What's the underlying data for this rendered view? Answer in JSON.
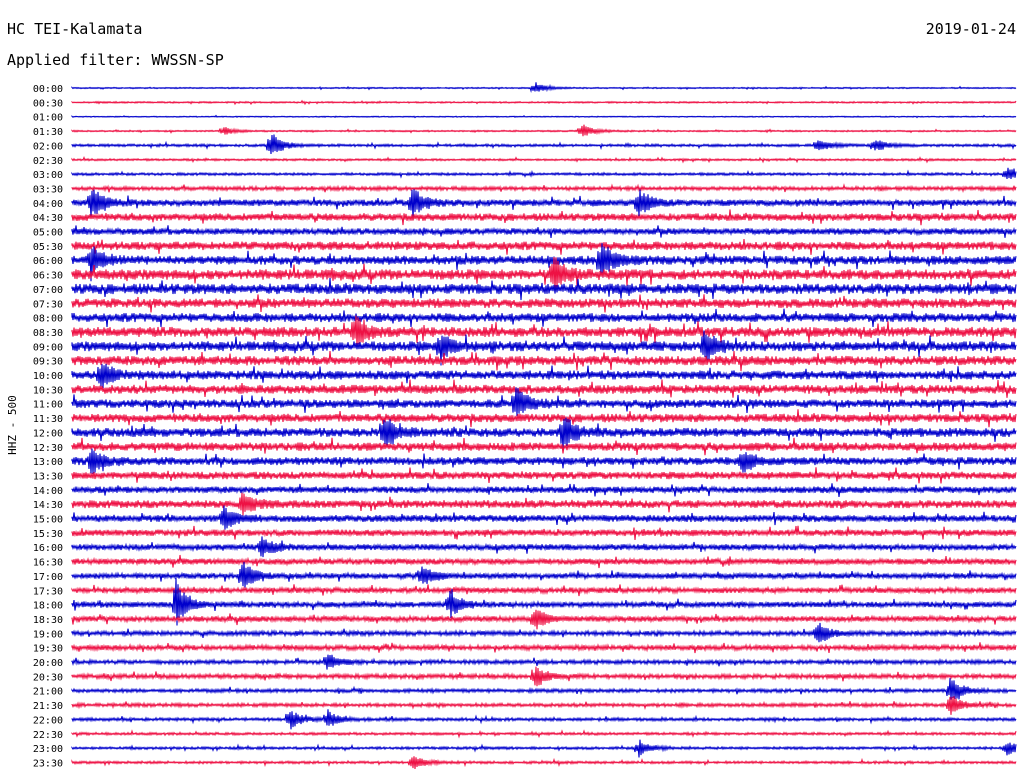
{
  "header": {
    "station": "HC TEI-Kalamata",
    "date": "2019-01-24",
    "filter_label": "Applied filter: WWSSN-SP"
  },
  "chart_data": {
    "type": "line",
    "title": "HC TEI-Kalamata",
    "ylabel": "HHZ - 500",
    "xlabel": "",
    "rows": [
      "00:00",
      "00:30",
      "01:00",
      "01:30",
      "02:00",
      "02:30",
      "03:00",
      "03:30",
      "04:00",
      "04:30",
      "05:00",
      "05:30",
      "06:00",
      "06:30",
      "07:00",
      "07:30",
      "08:00",
      "08:30",
      "09:00",
      "09:30",
      "10:00",
      "10:30",
      "11:00",
      "11:30",
      "12:00",
      "12:30",
      "13:00",
      "13:30",
      "14:00",
      "14:30",
      "15:00",
      "15:30",
      "16:00",
      "16:30",
      "17:00",
      "17:30",
      "18:00",
      "18:30",
      "19:00",
      "19:30",
      "20:00",
      "20:30",
      "21:00",
      "21:30",
      "22:00",
      "22:30",
      "23:00",
      "23:30"
    ],
    "series_colors": [
      "#0000cc",
      "#ee1144"
    ],
    "noise_level": [
      0.5,
      0.6,
      0.4,
      0.6,
      1.0,
      0.8,
      1.0,
      1.5,
      2.6,
      3.0,
      2.6,
      3.4,
      3.6,
      4.2,
      4.2,
      3.8,
      3.6,
      4.0,
      4.0,
      3.8,
      3.6,
      3.6,
      3.4,
      3.4,
      3.6,
      3.4,
      3.2,
      3.0,
      2.6,
      3.2,
      2.8,
      2.6,
      2.4,
      2.4,
      2.2,
      2.2,
      2.2,
      2.2,
      1.8,
      2.0,
      1.6,
      1.8,
      1.4,
      1.4,
      1.2,
      1.0,
      1.0,
      1.0
    ],
    "events": [
      {
        "row": "00:00",
        "x": 0.49,
        "amp": 5
      },
      {
        "row": "01:30",
        "x": 0.16,
        "amp": 4
      },
      {
        "row": "01:30",
        "x": 0.54,
        "amp": 6
      },
      {
        "row": "02:00",
        "x": 0.21,
        "amp": 12
      },
      {
        "row": "02:00",
        "x": 0.79,
        "amp": 6
      },
      {
        "row": "02:00",
        "x": 0.85,
        "amp": 6
      },
      {
        "row": "03:00",
        "x": 0.99,
        "amp": 6
      },
      {
        "row": "04:00",
        "x": 0.02,
        "amp": 14
      },
      {
        "row": "04:00",
        "x": 0.36,
        "amp": 14
      },
      {
        "row": "04:00",
        "x": 0.6,
        "amp": 12
      },
      {
        "row": "06:00",
        "x": 0.02,
        "amp": 14
      },
      {
        "row": "06:00",
        "x": 0.56,
        "amp": 16
      },
      {
        "row": "06:30",
        "x": 0.51,
        "amp": 14
      },
      {
        "row": "08:30",
        "x": 0.3,
        "amp": 14
      },
      {
        "row": "09:00",
        "x": 0.39,
        "amp": 14
      },
      {
        "row": "09:00",
        "x": 0.67,
        "amp": 14
      },
      {
        "row": "10:00",
        "x": 0.03,
        "amp": 12
      },
      {
        "row": "11:00",
        "x": 0.47,
        "amp": 14
      },
      {
        "row": "12:00",
        "x": 0.33,
        "amp": 14
      },
      {
        "row": "12:00",
        "x": 0.52,
        "amp": 16
      },
      {
        "row": "13:00",
        "x": 0.02,
        "amp": 12
      },
      {
        "row": "13:00",
        "x": 0.71,
        "amp": 10
      },
      {
        "row": "14:30",
        "x": 0.18,
        "amp": 10
      },
      {
        "row": "15:00",
        "x": 0.16,
        "amp": 12
      },
      {
        "row": "16:00",
        "x": 0.2,
        "amp": 10
      },
      {
        "row": "17:00",
        "x": 0.18,
        "amp": 14
      },
      {
        "row": "17:00",
        "x": 0.37,
        "amp": 10
      },
      {
        "row": "18:00",
        "x": 0.11,
        "amp": 22
      },
      {
        "row": "18:00",
        "x": 0.4,
        "amp": 12
      },
      {
        "row": "18:30",
        "x": 0.49,
        "amp": 10
      },
      {
        "row": "19:00",
        "x": 0.79,
        "amp": 10
      },
      {
        "row": "20:00",
        "x": 0.27,
        "amp": 8
      },
      {
        "row": "20:30",
        "x": 0.49,
        "amp": 10
      },
      {
        "row": "21:00",
        "x": 0.93,
        "amp": 12
      },
      {
        "row": "21:30",
        "x": 0.93,
        "amp": 10
      },
      {
        "row": "22:00",
        "x": 0.23,
        "amp": 10
      },
      {
        "row": "22:00",
        "x": 0.27,
        "amp": 8
      },
      {
        "row": "23:00",
        "x": 0.6,
        "amp": 8
      },
      {
        "row": "23:00",
        "x": 0.99,
        "amp": 6
      },
      {
        "row": "23:30",
        "x": 0.36,
        "amp": 7
      }
    ]
  }
}
